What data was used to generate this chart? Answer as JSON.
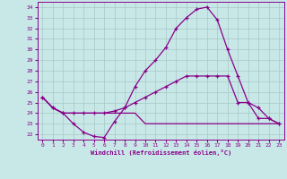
{
  "xlabel": "Windchill (Refroidissement éolien,°C)",
  "x": [
    0,
    1,
    2,
    3,
    4,
    5,
    6,
    7,
    8,
    9,
    10,
    11,
    12,
    13,
    14,
    15,
    16,
    17,
    18,
    19,
    20,
    21,
    22,
    23
  ],
  "curve1": [
    25.5,
    24.5,
    24.0,
    23.0,
    22.2,
    21.8,
    21.7,
    23.2,
    24.5,
    26.5,
    28.0,
    29.0,
    30.2,
    32.0,
    33.0,
    33.8,
    34.0,
    32.8,
    30.0,
    27.5,
    25.0,
    24.5,
    23.5,
    23.0
  ],
  "curve2": [
    25.5,
    24.5,
    24.0,
    24.0,
    24.0,
    24.0,
    24.0,
    24.2,
    24.5,
    25.0,
    25.5,
    26.0,
    26.5,
    27.0,
    27.5,
    27.5,
    27.5,
    27.5,
    27.5,
    25.0,
    25.0,
    23.5,
    23.5,
    23.0
  ],
  "curve3": [
    25.5,
    24.5,
    24.0,
    24.0,
    24.0,
    24.0,
    24.0,
    24.0,
    24.0,
    24.0,
    23.0,
    23.0,
    23.0,
    23.0,
    23.0,
    23.0,
    23.0,
    23.0,
    23.0,
    23.0,
    23.0,
    23.0,
    23.0,
    23.0
  ],
  "ylim": [
    21.5,
    34.5
  ],
  "yticks": [
    22,
    23,
    24,
    25,
    26,
    27,
    28,
    29,
    30,
    31,
    32,
    33,
    34
  ],
  "xticks": [
    0,
    1,
    2,
    3,
    4,
    5,
    6,
    7,
    8,
    9,
    10,
    11,
    12,
    13,
    14,
    15,
    16,
    17,
    18,
    19,
    20,
    21,
    22,
    23
  ],
  "line_color": "#880088",
  "bg_color": "#c8e8e8",
  "grid_color": "#a8c8c8",
  "marker": "+"
}
